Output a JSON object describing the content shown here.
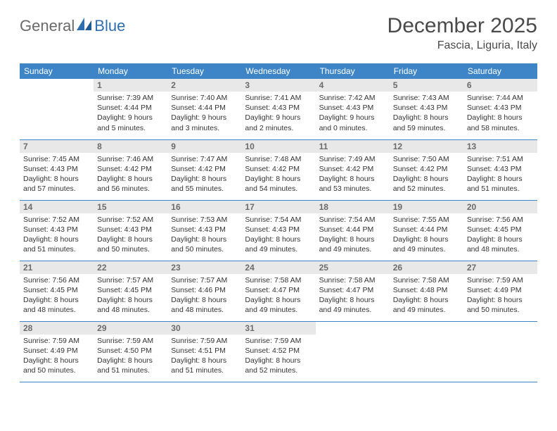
{
  "brand": {
    "text1": "General",
    "text2": "Blue"
  },
  "title": "December 2025",
  "location": "Fascia, Liguria, Italy",
  "colors": {
    "header_bg": "#3d85c6",
    "header_text": "#ffffff",
    "daynum_bg": "#e8e8e8",
    "daynum_text": "#6b6b6b",
    "row_border": "#3d85c6",
    "body_text": "#333333",
    "title_text": "#4a4a4a",
    "logo_gray": "#6a6a6a",
    "logo_blue": "#2f6fb0",
    "page_bg": "#ffffff"
  },
  "fonts": {
    "title_size_pt": 22,
    "location_size_pt": 12,
    "header_size_pt": 9,
    "daynum_size_pt": 9,
    "body_size_pt": 8
  },
  "weekdays": [
    "Sunday",
    "Monday",
    "Tuesday",
    "Wednesday",
    "Thursday",
    "Friday",
    "Saturday"
  ],
  "weeks": [
    [
      {
        "n": "",
        "sunrise": "",
        "sunset": "",
        "daylight": ""
      },
      {
        "n": "1",
        "sunrise": "Sunrise: 7:39 AM",
        "sunset": "Sunset: 4:44 PM",
        "daylight": "Daylight: 9 hours and 5 minutes."
      },
      {
        "n": "2",
        "sunrise": "Sunrise: 7:40 AM",
        "sunset": "Sunset: 4:44 PM",
        "daylight": "Daylight: 9 hours and 3 minutes."
      },
      {
        "n": "3",
        "sunrise": "Sunrise: 7:41 AM",
        "sunset": "Sunset: 4:43 PM",
        "daylight": "Daylight: 9 hours and 2 minutes."
      },
      {
        "n": "4",
        "sunrise": "Sunrise: 7:42 AM",
        "sunset": "Sunset: 4:43 PM",
        "daylight": "Daylight: 9 hours and 0 minutes."
      },
      {
        "n": "5",
        "sunrise": "Sunrise: 7:43 AM",
        "sunset": "Sunset: 4:43 PM",
        "daylight": "Daylight: 8 hours and 59 minutes."
      },
      {
        "n": "6",
        "sunrise": "Sunrise: 7:44 AM",
        "sunset": "Sunset: 4:43 PM",
        "daylight": "Daylight: 8 hours and 58 minutes."
      }
    ],
    [
      {
        "n": "7",
        "sunrise": "Sunrise: 7:45 AM",
        "sunset": "Sunset: 4:43 PM",
        "daylight": "Daylight: 8 hours and 57 minutes."
      },
      {
        "n": "8",
        "sunrise": "Sunrise: 7:46 AM",
        "sunset": "Sunset: 4:42 PM",
        "daylight": "Daylight: 8 hours and 56 minutes."
      },
      {
        "n": "9",
        "sunrise": "Sunrise: 7:47 AM",
        "sunset": "Sunset: 4:42 PM",
        "daylight": "Daylight: 8 hours and 55 minutes."
      },
      {
        "n": "10",
        "sunrise": "Sunrise: 7:48 AM",
        "sunset": "Sunset: 4:42 PM",
        "daylight": "Daylight: 8 hours and 54 minutes."
      },
      {
        "n": "11",
        "sunrise": "Sunrise: 7:49 AM",
        "sunset": "Sunset: 4:42 PM",
        "daylight": "Daylight: 8 hours and 53 minutes."
      },
      {
        "n": "12",
        "sunrise": "Sunrise: 7:50 AM",
        "sunset": "Sunset: 4:42 PM",
        "daylight": "Daylight: 8 hours and 52 minutes."
      },
      {
        "n": "13",
        "sunrise": "Sunrise: 7:51 AM",
        "sunset": "Sunset: 4:43 PM",
        "daylight": "Daylight: 8 hours and 51 minutes."
      }
    ],
    [
      {
        "n": "14",
        "sunrise": "Sunrise: 7:52 AM",
        "sunset": "Sunset: 4:43 PM",
        "daylight": "Daylight: 8 hours and 51 minutes."
      },
      {
        "n": "15",
        "sunrise": "Sunrise: 7:52 AM",
        "sunset": "Sunset: 4:43 PM",
        "daylight": "Daylight: 8 hours and 50 minutes."
      },
      {
        "n": "16",
        "sunrise": "Sunrise: 7:53 AM",
        "sunset": "Sunset: 4:43 PM",
        "daylight": "Daylight: 8 hours and 50 minutes."
      },
      {
        "n": "17",
        "sunrise": "Sunrise: 7:54 AM",
        "sunset": "Sunset: 4:43 PM",
        "daylight": "Daylight: 8 hours and 49 minutes."
      },
      {
        "n": "18",
        "sunrise": "Sunrise: 7:54 AM",
        "sunset": "Sunset: 4:44 PM",
        "daylight": "Daylight: 8 hours and 49 minutes."
      },
      {
        "n": "19",
        "sunrise": "Sunrise: 7:55 AM",
        "sunset": "Sunset: 4:44 PM",
        "daylight": "Daylight: 8 hours and 49 minutes."
      },
      {
        "n": "20",
        "sunrise": "Sunrise: 7:56 AM",
        "sunset": "Sunset: 4:45 PM",
        "daylight": "Daylight: 8 hours and 48 minutes."
      }
    ],
    [
      {
        "n": "21",
        "sunrise": "Sunrise: 7:56 AM",
        "sunset": "Sunset: 4:45 PM",
        "daylight": "Daylight: 8 hours and 48 minutes."
      },
      {
        "n": "22",
        "sunrise": "Sunrise: 7:57 AM",
        "sunset": "Sunset: 4:45 PM",
        "daylight": "Daylight: 8 hours and 48 minutes."
      },
      {
        "n": "23",
        "sunrise": "Sunrise: 7:57 AM",
        "sunset": "Sunset: 4:46 PM",
        "daylight": "Daylight: 8 hours and 48 minutes."
      },
      {
        "n": "24",
        "sunrise": "Sunrise: 7:58 AM",
        "sunset": "Sunset: 4:47 PM",
        "daylight": "Daylight: 8 hours and 49 minutes."
      },
      {
        "n": "25",
        "sunrise": "Sunrise: 7:58 AM",
        "sunset": "Sunset: 4:47 PM",
        "daylight": "Daylight: 8 hours and 49 minutes."
      },
      {
        "n": "26",
        "sunrise": "Sunrise: 7:58 AM",
        "sunset": "Sunset: 4:48 PM",
        "daylight": "Daylight: 8 hours and 49 minutes."
      },
      {
        "n": "27",
        "sunrise": "Sunrise: 7:59 AM",
        "sunset": "Sunset: 4:49 PM",
        "daylight": "Daylight: 8 hours and 50 minutes."
      }
    ],
    [
      {
        "n": "28",
        "sunrise": "Sunrise: 7:59 AM",
        "sunset": "Sunset: 4:49 PM",
        "daylight": "Daylight: 8 hours and 50 minutes."
      },
      {
        "n": "29",
        "sunrise": "Sunrise: 7:59 AM",
        "sunset": "Sunset: 4:50 PM",
        "daylight": "Daylight: 8 hours and 51 minutes."
      },
      {
        "n": "30",
        "sunrise": "Sunrise: 7:59 AM",
        "sunset": "Sunset: 4:51 PM",
        "daylight": "Daylight: 8 hours and 51 minutes."
      },
      {
        "n": "31",
        "sunrise": "Sunrise: 7:59 AM",
        "sunset": "Sunset: 4:52 PM",
        "daylight": "Daylight: 8 hours and 52 minutes."
      },
      {
        "n": "",
        "sunrise": "",
        "sunset": "",
        "daylight": ""
      },
      {
        "n": "",
        "sunrise": "",
        "sunset": "",
        "daylight": ""
      },
      {
        "n": "",
        "sunrise": "",
        "sunset": "",
        "daylight": ""
      }
    ]
  ]
}
